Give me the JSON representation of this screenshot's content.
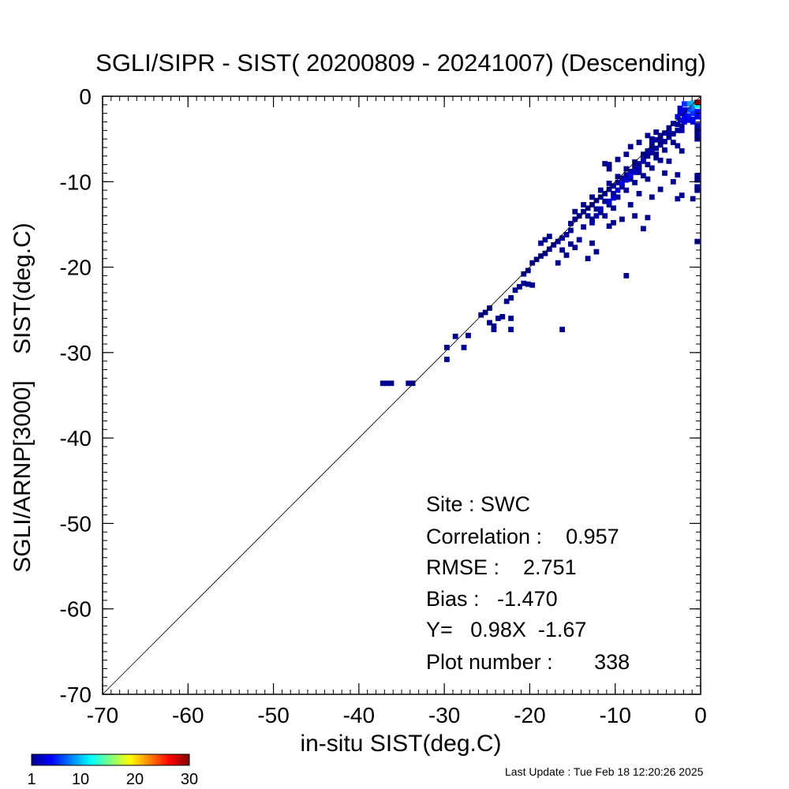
{
  "chart_data": {
    "type": "heatmap",
    "title": "SGLI/SIPR - SIST( 20200809 - 20241007) (Descending)",
    "xlabel": "in-situ SIST(deg.C)",
    "ylabel": "SGLI/ARNP[3000]    SIST(deg.C)",
    "xlim": [
      -70,
      0
    ],
    "ylim": [
      -70,
      0
    ],
    "x_ticks": [
      -70,
      -60,
      -50,
      -40,
      -30,
      -20,
      -10,
      0
    ],
    "y_ticks": [
      0,
      -10,
      -20,
      -30,
      -40,
      -50,
      -60,
      -70
    ],
    "x_tick_labels": [
      "-70",
      "-60",
      "-50",
      "-40",
      "-30",
      "-20",
      "-10",
      "0"
    ],
    "y_tick_labels": [
      "0",
      "-10",
      "-20",
      "-30",
      "-40",
      "-50",
      "-60",
      "-70"
    ],
    "one_to_one_line": true,
    "bin_size": 0.5,
    "cells": [
      [
        -37.2,
        -33.6,
        1
      ],
      [
        -36.7,
        -33.6,
        1
      ],
      [
        -36.2,
        -33.6,
        1
      ],
      [
        -34.2,
        -33.6,
        1
      ],
      [
        -33.7,
        -33.6,
        1
      ],
      [
        -29.7,
        -30.8,
        1
      ],
      [
        -29.7,
        -29.4,
        1
      ],
      [
        -28.7,
        -28.1,
        1
      ],
      [
        -27.7,
        -29.4,
        1
      ],
      [
        -27.2,
        -28.0,
        1
      ],
      [
        -25.7,
        -25.6,
        1
      ],
      [
        -25.2,
        -25.3,
        1
      ],
      [
        -24.7,
        -24.8,
        1
      ],
      [
        -24.7,
        -26.5,
        1
      ],
      [
        -24.2,
        -26.9,
        1
      ],
      [
        -24.2,
        -27.3,
        1
      ],
      [
        -23.7,
        -26.0,
        1
      ],
      [
        -23.2,
        -25.8,
        1
      ],
      [
        -22.2,
        -26.0,
        1
      ],
      [
        -22.2,
        -27.3,
        1
      ],
      [
        -22.7,
        -24.0,
        1
      ],
      [
        -22.2,
        -23.6,
        1
      ],
      [
        -21.7,
        -22.7,
        1
      ],
      [
        -21.2,
        -22.3,
        1
      ],
      [
        -20.7,
        -21.9,
        1
      ],
      [
        -20.2,
        -22.0,
        1
      ],
      [
        -19.7,
        -22.1,
        1
      ],
      [
        -20.7,
        -20.8,
        1
      ],
      [
        -20.2,
        -20.4,
        1
      ],
      [
        -19.7,
        -19.5,
        1
      ],
      [
        -19.2,
        -19.1,
        1
      ],
      [
        -18.7,
        -18.7,
        1
      ],
      [
        -18.2,
        -18.4,
        1
      ],
      [
        -17.7,
        -17.9,
        1
      ],
      [
        -17.2,
        -17.4,
        1
      ],
      [
        -16.7,
        -17.0,
        1
      ],
      [
        -16.2,
        -16.6,
        1
      ],
      [
        -15.7,
        -16.2,
        1
      ],
      [
        -15.2,
        -15.7,
        1
      ],
      [
        -18.7,
        -17.2,
        1
      ],
      [
        -18.2,
        -16.8,
        1
      ],
      [
        -17.7,
        -16.4,
        1
      ],
      [
        -16.2,
        -18.0,
        1
      ],
      [
        -16.7,
        -19.5,
        1
      ],
      [
        -15.7,
        -18.6,
        1
      ],
      [
        -15.2,
        -17.3,
        1
      ],
      [
        -14.7,
        -17.7,
        1
      ],
      [
        -14.2,
        -16.8,
        1
      ],
      [
        -13.2,
        -19.0,
        1
      ],
      [
        -12.7,
        -17.2,
        1
      ],
      [
        -16.2,
        -27.3,
        1
      ],
      [
        -12.2,
        -18.2,
        1
      ],
      [
        -15.2,
        -14.9,
        1
      ],
      [
        -14.7,
        -14.4,
        1
      ],
      [
        -14.2,
        -14.0,
        1
      ],
      [
        -13.7,
        -13.5,
        1
      ],
      [
        -13.2,
        -13.1,
        1
      ],
      [
        -12.7,
        -12.7,
        1
      ],
      [
        -12.2,
        -12.2,
        1
      ],
      [
        -11.7,
        -11.8,
        1
      ],
      [
        -11.2,
        -11.4,
        1
      ],
      [
        -10.7,
        -10.9,
        1
      ],
      [
        -10.2,
        -10.5,
        1
      ],
      [
        -9.7,
        -10.1,
        1
      ],
      [
        -9.2,
        -9.6,
        1
      ],
      [
        -8.7,
        -9.2,
        1
      ],
      [
        -8.2,
        -8.8,
        1
      ],
      [
        -7.7,
        -8.3,
        1
      ],
      [
        -7.2,
        -7.9,
        1
      ],
      [
        -6.7,
        -7.4,
        1
      ],
      [
        -6.2,
        -7.0,
        1
      ],
      [
        -5.7,
        -6.6,
        1
      ],
      [
        -5.2,
        -6.1,
        1
      ],
      [
        -4.7,
        -5.7,
        1
      ],
      [
        -4.2,
        -5.3,
        1
      ],
      [
        -3.7,
        -4.8,
        1
      ],
      [
        -3.2,
        -4.4,
        1
      ],
      [
        -2.7,
        -4.0,
        1
      ],
      [
        -2.2,
        -3.5,
        1
      ],
      [
        -14.7,
        -13.5,
        1
      ],
      [
        -13.7,
        -12.7,
        1
      ],
      [
        -12.7,
        -11.8,
        1
      ],
      [
        -11.7,
        -11.0,
        1
      ],
      [
        -10.7,
        -10.2,
        1
      ],
      [
        -9.7,
        -9.4,
        1
      ],
      [
        -8.7,
        -8.5,
        1
      ],
      [
        -7.7,
        -7.7,
        1
      ],
      [
        -6.7,
        -6.8,
        1
      ],
      [
        -5.7,
        -6.0,
        1
      ],
      [
        -4.7,
        -5.1,
        1
      ],
      [
        -3.7,
        -4.3,
        1
      ],
      [
        -10.7,
        -8.0,
        1
      ],
      [
        -11.2,
        -7.9,
        1
      ],
      [
        -9.7,
        -7.4,
        1
      ],
      [
        -8.7,
        -6.8,
        1
      ],
      [
        -8.2,
        -5.9,
        1
      ],
      [
        -7.2,
        -5.4,
        1
      ],
      [
        -6.2,
        -4.6,
        1
      ],
      [
        -5.2,
        -4.2,
        1
      ],
      [
        -5.7,
        -5.0,
        1
      ],
      [
        -4.7,
        -4.6,
        1
      ],
      [
        -3.7,
        -3.7,
        1
      ],
      [
        -2.7,
        -3.3,
        1
      ],
      [
        -13.2,
        -14.0,
        1
      ],
      [
        -12.2,
        -13.2,
        1
      ],
      [
        -11.2,
        -12.3,
        1
      ],
      [
        -10.2,
        -11.4,
        1
      ],
      [
        -9.2,
        -10.6,
        1
      ],
      [
        -8.2,
        -9.7,
        1
      ],
      [
        -7.2,
        -8.9,
        1
      ],
      [
        -6.2,
        -8.0,
        1
      ],
      [
        -5.2,
        -7.2,
        1
      ],
      [
        -4.2,
        -6.3,
        1
      ],
      [
        -3.2,
        -5.4,
        1
      ],
      [
        -13.7,
        -15.3,
        1
      ],
      [
        -12.7,
        -14.4,
        1
      ],
      [
        -11.7,
        -13.6,
        1
      ],
      [
        -10.7,
        -12.7,
        1
      ],
      [
        -9.7,
        -11.8,
        1
      ],
      [
        -8.7,
        -11.0,
        1
      ],
      [
        -7.7,
        -10.1,
        1
      ],
      [
        -6.7,
        -9.3,
        1
      ],
      [
        -5.7,
        -8.4,
        1
      ],
      [
        -4.7,
        -7.5,
        1
      ],
      [
        -11.2,
        -14.0,
        1
      ],
      [
        -10.2,
        -13.1,
        1
      ],
      [
        -9.2,
        -14.4,
        1
      ],
      [
        -7.7,
        -14.0,
        1
      ],
      [
        -8.2,
        -12.7,
        1
      ],
      [
        -7.2,
        -11.4,
        1
      ],
      [
        -5.7,
        -11.8,
        1
      ],
      [
        -4.7,
        -10.9,
        1
      ],
      [
        -2.7,
        -12.0,
        1
      ],
      [
        -2.2,
        -11.6,
        1
      ],
      [
        -6.2,
        -9.7,
        1
      ],
      [
        -4.2,
        -9.0,
        1
      ],
      [
        -3.7,
        -7.6,
        1
      ],
      [
        -5.2,
        -6.8,
        1
      ],
      [
        -2.2,
        -6.4,
        1
      ],
      [
        -2.7,
        -5.8,
        1
      ],
      [
        -8.7,
        -21.0,
        1
      ],
      [
        -10.7,
        -15.2,
        1
      ],
      [
        -10.2,
        -14.8,
        1
      ],
      [
        -6.7,
        -15.5,
        1
      ],
      [
        -6.2,
        -14.2,
        1
      ],
      [
        -10.7,
        -8.5,
        1
      ],
      [
        -3.2,
        -10.0,
        1
      ],
      [
        -2.7,
        -9.2,
        1
      ],
      [
        -0.4,
        -17.0,
        1
      ],
      [
        -0.4,
        -11.0,
        1
      ],
      [
        -0.4,
        -10.6,
        1
      ],
      [
        -0.4,
        -9.8,
        1
      ],
      [
        -0.4,
        -9.3,
        1
      ],
      [
        -0.4,
        -5.0,
        1
      ],
      [
        -0.4,
        -4.5,
        1
      ],
      [
        -0.4,
        -4.0,
        1
      ],
      [
        -0.9,
        -12.0,
        1
      ],
      [
        -0.4,
        -3.4,
        2
      ],
      [
        -0.9,
        -3.0,
        3
      ],
      [
        -1.4,
        -2.8,
        4
      ],
      [
        -1.9,
        -3.0,
        3
      ],
      [
        -2.4,
        -2.8,
        2
      ],
      [
        -3.2,
        -3.2,
        2
      ],
      [
        -1.4,
        -2.3,
        5
      ],
      [
        -0.9,
        -2.0,
        6
      ],
      [
        -0.4,
        -2.4,
        4
      ],
      [
        -1.9,
        -2.2,
        4
      ],
      [
        -2.4,
        -2.0,
        3
      ],
      [
        -0.9,
        -1.4,
        8
      ],
      [
        -1.4,
        -1.6,
        7
      ],
      [
        -0.4,
        -1.8,
        5
      ],
      [
        -1.9,
        -1.6,
        4
      ],
      [
        -2.4,
        -1.4,
        3
      ],
      [
        -0.9,
        -0.8,
        10
      ],
      [
        -1.4,
        -0.9,
        9
      ],
      [
        -1.9,
        -0.9,
        6
      ],
      [
        -0.4,
        -1.1,
        12
      ],
      [
        -0.4,
        -0.7,
        30
      ],
      [
        -12.7,
        -14.8,
        2
      ],
      [
        -12.2,
        -14.0,
        2
      ],
      [
        -11.7,
        -13.2,
        2
      ],
      [
        -10.7,
        -12.3,
        3
      ],
      [
        -10.2,
        -11.9,
        3
      ],
      [
        -9.7,
        -11.0,
        3
      ],
      [
        -9.2,
        -10.2,
        4
      ],
      [
        -8.7,
        -9.8,
        3
      ],
      [
        -8.2,
        -9.3,
        4
      ],
      [
        -7.7,
        -8.9,
        3
      ],
      [
        -7.2,
        -8.5,
        2
      ],
      [
        -6.7,
        -7.6,
        2
      ],
      [
        -6.2,
        -6.4,
        2
      ],
      [
        -5.7,
        -5.5,
        2
      ],
      [
        -5.2,
        -5.1,
        2
      ],
      [
        -4.2,
        -4.3,
        2
      ],
      [
        -3.7,
        -4.0,
        2
      ],
      [
        -2.2,
        -4.0,
        2
      ],
      [
        -2.7,
        -2.4,
        3
      ],
      [
        -2.2,
        -2.8,
        3
      ],
      [
        -1.9,
        -2.6,
        4
      ],
      [
        -0.9,
        -2.7,
        4
      ]
    ],
    "colorbar": {
      "min": 1,
      "max": 30,
      "tick_labels": [
        "1",
        "10",
        "20",
        "30"
      ],
      "tick_values": [
        1,
        10,
        20,
        30
      ],
      "colormap": "jet"
    },
    "stats": {
      "site": "Site : SWC",
      "correlation": "Correlation :    0.957",
      "rmse": "RMSE :    2.751",
      "bias": "Bias :   -1.470",
      "regression": "Y=   0.98X  -1.67",
      "plot_number": "Plot number :       338"
    },
    "footer": "Last Update : Tue Feb 18 12:20:26 2025",
    "colors": {
      "line": "#000000",
      "one_to_one": "#000000",
      "background": "#ffffff"
    }
  }
}
